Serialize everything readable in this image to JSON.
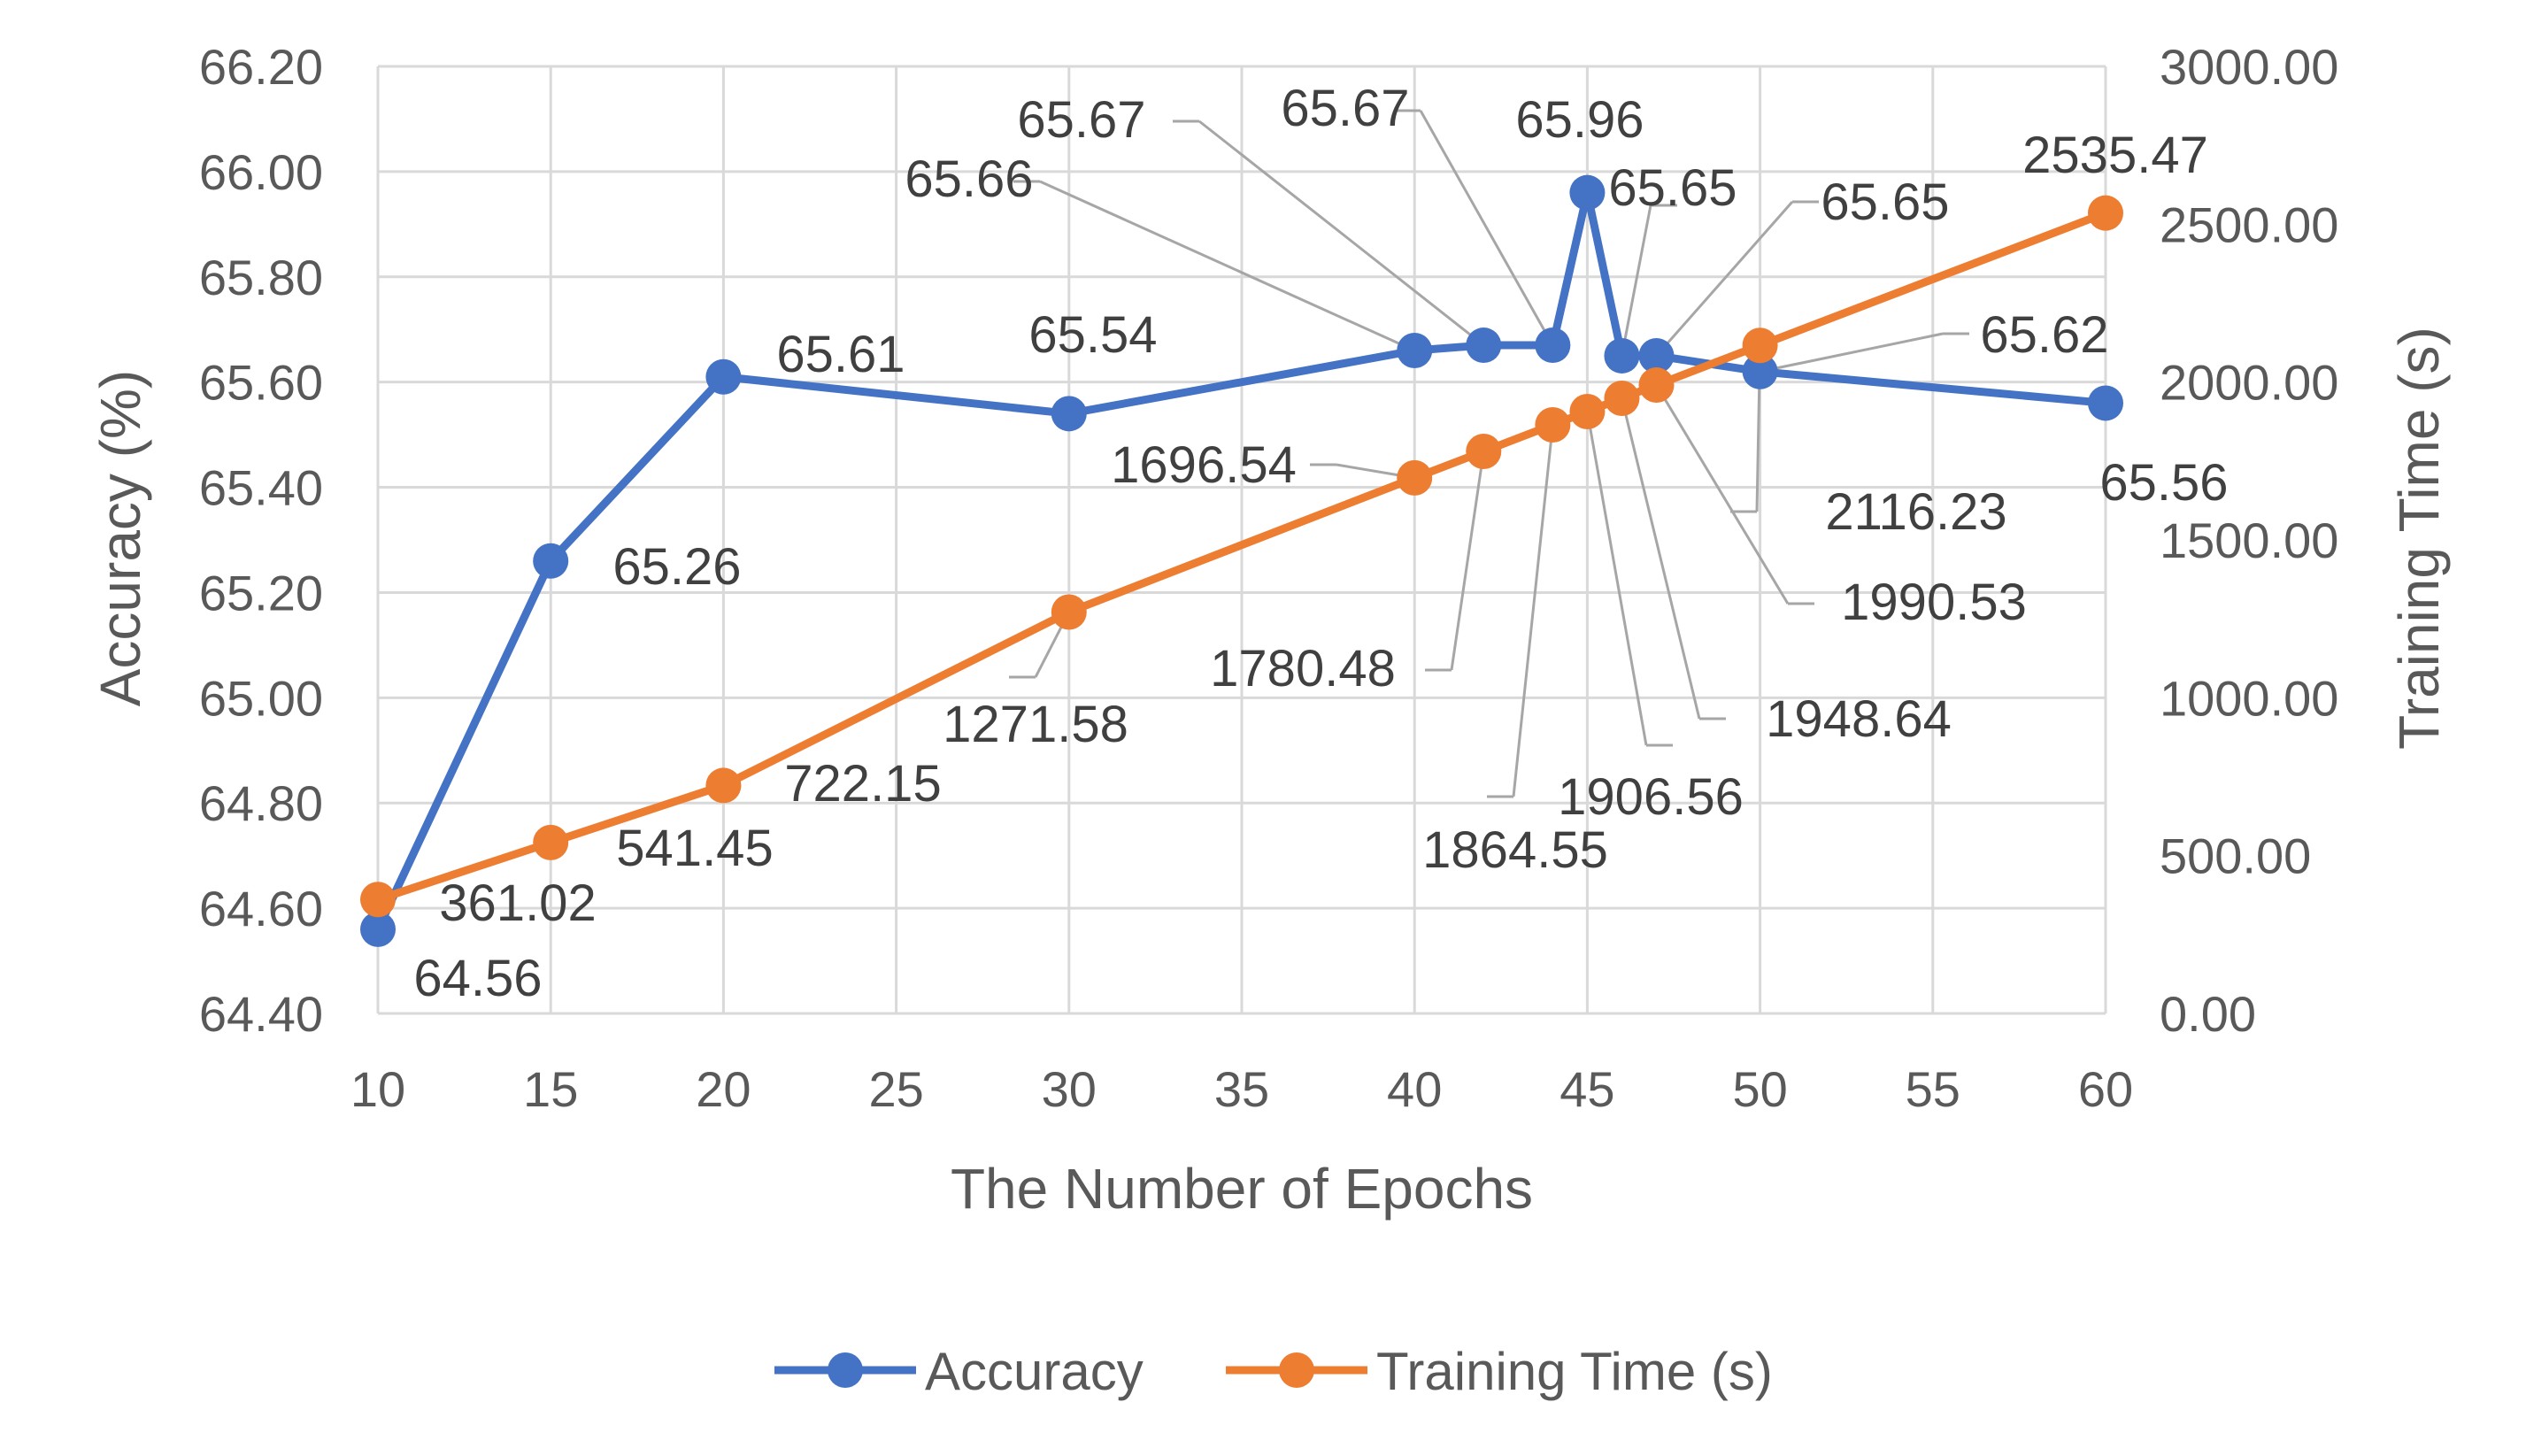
{
  "chart_data": {
    "type": "line",
    "x": [
      10,
      15,
      20,
      30,
      40,
      42,
      44,
      45,
      46,
      47,
      50,
      60
    ],
    "series": [
      {
        "name": "Accuracy",
        "axis": "left",
        "color": "#4472C4",
        "values": [
          64.56,
          65.26,
          65.61,
          65.54,
          65.66,
          65.67,
          65.67,
          65.96,
          65.65,
          65.65,
          65.62,
          65.56
        ],
        "labels": [
          "64.56",
          "65.26",
          "65.61",
          "65.54",
          "65.66",
          "65.67",
          "65.67",
          "65.96",
          "65.65",
          "65.65",
          "65.62",
          "65.56"
        ]
      },
      {
        "name": "Training Time (s)",
        "axis": "right",
        "color": "#ED7D31",
        "values": [
          361.02,
          541.45,
          722.15,
          1271.58,
          1696.54,
          1780.48,
          1864.55,
          1906.56,
          1948.64,
          1990.53,
          2116.23,
          2535.47
        ],
        "labels": [
          "361.02",
          "541.45",
          "722.15",
          "1271.58",
          "1696.54",
          "1780.48",
          "1864.55",
          "1906.56",
          "1948.64",
          "1990.53",
          "2116.23",
          "2535.47"
        ]
      }
    ],
    "xlabel": "The Number of Epochs",
    "ylabel": "Accuracy (%)",
    "y2label": "Training Time (s)",
    "xlim": [
      10,
      60
    ],
    "ylim": [
      64.4,
      66.2
    ],
    "y2lim": [
      0,
      3000
    ],
    "xticks": [
      "10",
      "15",
      "20",
      "25",
      "30",
      "35",
      "40",
      "45",
      "50",
      "55",
      "60"
    ],
    "yticks": [
      "64.40",
      "64.60",
      "64.80",
      "65.00",
      "65.20",
      "65.40",
      "65.60",
      "65.80",
      "66.00",
      "66.20"
    ],
    "y2ticks": [
      "0.00",
      "500.00",
      "1000.00",
      "1500.00",
      "2000.00",
      "2500.00",
      "3000.00"
    ],
    "grid": true,
    "legend": "bottom"
  }
}
